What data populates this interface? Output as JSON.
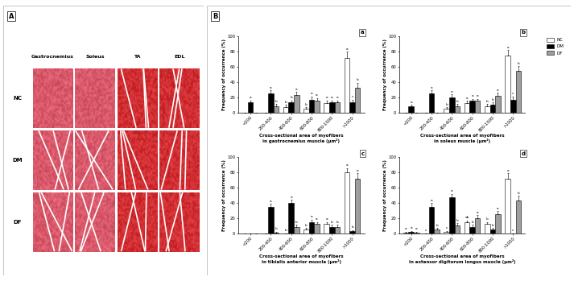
{
  "panel_a": {
    "label": "A",
    "columns": [
      "Gastrocnemius",
      "Soleus",
      "TA",
      "EDL"
    ],
    "rows": [
      "NC",
      "DM",
      "DF"
    ]
  },
  "panel_b_label": "B",
  "chart_data": [
    {
      "type": "bar",
      "panel": "a",
      "x_label": "Cross-sectional area of myofibers\nin gastrocnemius muscle (μm²)",
      "y_label": "Frequency of occurrence (%)",
      "categories": [
        "<200",
        "200-400",
        "400-600",
        "600-800",
        "800-1000",
        ">1000"
      ],
      "ylim": [
        0,
        100
      ],
      "yticks": [
        0,
        20,
        40,
        60,
        80,
        100
      ],
      "series": [
        {
          "name": "NC",
          "color": "#ffffff",
          "values": [
            0,
            0,
            7,
            5,
            12,
            72
          ],
          "errors": [
            0,
            0,
            3,
            2,
            4,
            8
          ],
          "letters": [
            null,
            null,
            "b",
            "b",
            "a",
            "a"
          ]
        },
        {
          "name": "DM",
          "color": "#000000",
          "values": [
            13,
            25,
            13,
            17,
            13,
            13
          ],
          "errors": [
            3,
            4,
            3,
            4,
            3,
            4
          ],
          "letters": [
            "a",
            "a",
            "b",
            "a",
            "a",
            "c"
          ]
        },
        {
          "name": "DF",
          "color": "#9e9e9e",
          "values": [
            0,
            8,
            23,
            15,
            13,
            33
          ],
          "errors": [
            0,
            3,
            4,
            4,
            3,
            6
          ],
          "letters": [
            null,
            "b",
            "a",
            "a",
            "a",
            "b"
          ]
        }
      ]
    },
    {
      "type": "bar",
      "panel": "b",
      "legend": "upper right",
      "x_label": "Cross-sectional area of myofibers\nin soleus muscle (μm²)",
      "y_label": "Frequency of occurrence (%)",
      "categories": [
        "<200",
        "200-400",
        "400-600",
        "600-800",
        "800-1000",
        ">1000"
      ],
      "ylim": [
        0,
        100
      ],
      "yticks": [
        0,
        20,
        40,
        60,
        80,
        100
      ],
      "series": [
        {
          "name": "NC",
          "color": "#ffffff",
          "values": [
            0,
            0,
            5,
            12,
            8,
            75
          ],
          "errors": [
            0,
            0,
            2,
            3,
            3,
            7
          ],
          "letters": [
            null,
            null,
            "b",
            "a",
            "b",
            "a"
          ]
        },
        {
          "name": "DM",
          "color": "#000000",
          "values": [
            8,
            25,
            20,
            15,
            10,
            17
          ],
          "errors": [
            2,
            4,
            4,
            3,
            3,
            4
          ],
          "letters": [
            "a",
            "a",
            "a",
            "a",
            "b",
            "c"
          ]
        },
        {
          "name": "DF",
          "color": "#9e9e9e",
          "values": [
            0,
            0,
            8,
            15,
            22,
            55
          ],
          "errors": [
            0,
            0,
            3,
            3,
            4,
            6
          ],
          "letters": [
            null,
            null,
            "b",
            "a",
            "a",
            "b"
          ]
        }
      ]
    },
    {
      "type": "bar",
      "panel": "c",
      "x_label": "Cross-sectional area of myofibers\nin tibialis anterior muscle (μm²)",
      "y_label": "Frequency of occurrence (%)",
      "categories": [
        "<200",
        "200-400",
        "400-600",
        "600-800",
        "800-1000",
        ">1000"
      ],
      "ylim": [
        0,
        100
      ],
      "yticks": [
        0,
        20,
        40,
        60,
        80,
        100
      ],
      "series": [
        {
          "name": "NC",
          "color": "#ffffff",
          "values": [
            0,
            0,
            0,
            5,
            12,
            80
          ],
          "errors": [
            0,
            0,
            0,
            2,
            3,
            6
          ],
          "letters": [
            null,
            null,
            "b",
            "b",
            "a",
            "a"
          ]
        },
        {
          "name": "DM",
          "color": "#000000",
          "values": [
            0,
            35,
            40,
            15,
            8,
            3
          ],
          "errors": [
            0,
            4,
            4,
            3,
            3,
            1
          ],
          "letters": [
            null,
            "a",
            "a",
            "a",
            "b",
            "b"
          ]
        },
        {
          "name": "DF",
          "color": "#9e9e9e",
          "values": [
            0,
            1,
            8,
            12,
            8,
            72
          ],
          "errors": [
            0,
            1,
            3,
            3,
            3,
            7
          ],
          "letters": [
            null,
            "b",
            "b",
            "a",
            "b",
            "a"
          ]
        }
      ]
    },
    {
      "type": "bar",
      "panel": "d",
      "x_label": "Cross-sectional area of myofibers\nin extensor digitorum longus muscle (μm²)",
      "y_label": "Frequency of occurrence (%)",
      "categories": [
        "<200",
        "200-400",
        "400-600",
        "600-800",
        "800-1000",
        ">1000"
      ],
      "ylim": [
        0,
        100
      ],
      "yticks": [
        0,
        20,
        40,
        60,
        80,
        100
      ],
      "series": [
        {
          "name": "NC",
          "color": "#ffffff",
          "values": [
            1,
            0,
            2,
            14,
            12,
            72
          ],
          "errors": [
            1,
            0,
            1,
            3,
            3,
            7
          ],
          "letters": [
            "a",
            "c",
            "c",
            "ab",
            "b",
            "a"
          ]
        },
        {
          "name": "DM",
          "color": "#000000",
          "values": [
            2,
            35,
            47,
            8,
            5,
            0
          ],
          "errors": [
            1,
            5,
            5,
            3,
            2,
            0
          ],
          "letters": [
            "a",
            "a",
            "a",
            "b",
            "b",
            "c"
          ]
        },
        {
          "name": "DF",
          "color": "#9e9e9e",
          "values": [
            1,
            5,
            10,
            20,
            25,
            43
          ],
          "errors": [
            1,
            2,
            3,
            4,
            4,
            6
          ],
          "letters": [
            "a",
            "b",
            "b",
            "a",
            "a",
            "b"
          ]
        }
      ]
    }
  ]
}
